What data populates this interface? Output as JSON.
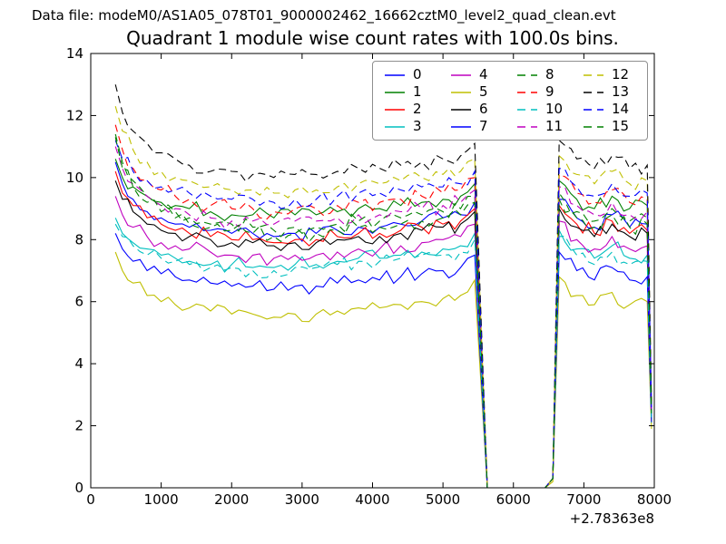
{
  "header": {
    "text": "Data file: modeM0/AS1A05_078T01_9000002462_16662cztM0_level2_quad_clean.evt"
  },
  "colors": {
    "background": "#ffffff",
    "axis": "#000000",
    "legend_border": "#8f8f8f",
    "palette_note": "matplotlib classic cycle b g r c m y k",
    "blue": "#0000ff",
    "green": "#008000",
    "red": "#ff0000",
    "cyan": "#00bfbf",
    "magenta": "#bf00bf",
    "yellow": "#bfbf00",
    "black": "#000000"
  },
  "chart_data": {
    "type": "line",
    "title": "Quadrant 1 module wise count rates with 100.0s bins.",
    "xlabel": "",
    "ylabel": "",
    "xlim": [
      0,
      8000
    ],
    "ylim": [
      0,
      14
    ],
    "x_ticks": [
      0,
      1000,
      2000,
      3000,
      4000,
      5000,
      6000,
      7000,
      8000
    ],
    "y_ticks": [
      0,
      2,
      4,
      6,
      8,
      10,
      12,
      14
    ],
    "x_offset_label": "+2.78363e8",
    "grid": false,
    "legend_position": "upper center",
    "bin_seconds": 100.0,
    "noise_amp": 0.27,
    "x": [
      350,
      450,
      600,
      800,
      1000,
      1200,
      1400,
      1700,
      2000,
      2300,
      2600,
      2900,
      3200,
      3500,
      3800,
      4100,
      4400,
      4700,
      5000,
      5250,
      5450,
      5630,
      6450,
      6560,
      6650,
      6900,
      7150,
      7400,
      7650,
      7900,
      7960
    ],
    "series": [
      {
        "name": "0",
        "color": "#0000ff",
        "dash": false,
        "values": [
          10.5,
          9.8,
          9.3,
          8.9,
          8.7,
          8.5,
          8.4,
          8.3,
          8.2,
          8.2,
          8.1,
          8.2,
          8.2,
          8.3,
          8.4,
          8.4,
          8.5,
          8.6,
          8.7,
          8.8,
          9.2,
          0,
          0,
          0.3,
          9.3,
          8.7,
          8.4,
          8.8,
          8.4,
          8.5,
          2.3
        ]
      },
      {
        "name": "1",
        "color": "#008000",
        "dash": false,
        "values": [
          10.6,
          10.0,
          9.7,
          9.4,
          9.2,
          9.1,
          9.0,
          8.9,
          8.8,
          8.8,
          8.7,
          8.8,
          8.8,
          8.9,
          9.0,
          9.0,
          9.1,
          9.2,
          9.3,
          9.4,
          9.8,
          0,
          0,
          0.3,
          9.9,
          9.3,
          9.0,
          9.4,
          9.0,
          9.1,
          2.5
        ]
      },
      {
        "name": "2",
        "color": "#ff0000",
        "dash": false,
        "values": [
          10.2,
          9.5,
          9.1,
          8.7,
          8.5,
          8.3,
          8.2,
          8.1,
          8.0,
          8.0,
          7.9,
          8.0,
          8.0,
          8.1,
          8.2,
          8.2,
          8.3,
          8.4,
          8.5,
          8.6,
          9.0,
          0,
          0,
          0.3,
          9.1,
          8.5,
          8.2,
          8.6,
          8.2,
          8.3,
          2.4
        ]
      },
      {
        "name": "3",
        "color": "#00bfbf",
        "dash": false,
        "values": [
          8.7,
          8.2,
          7.9,
          7.7,
          7.5,
          7.4,
          7.3,
          7.2,
          7.2,
          7.1,
          7.1,
          7.2,
          7.2,
          7.3,
          7.4,
          7.4,
          7.5,
          7.6,
          7.7,
          7.8,
          8.2,
          0,
          0,
          0.3,
          8.3,
          7.7,
          7.4,
          7.8,
          7.4,
          7.5,
          2.2
        ]
      },
      {
        "name": "4",
        "color": "#bf00bf",
        "dash": false,
        "values": [
          9.4,
          8.8,
          8.4,
          8.1,
          7.9,
          7.8,
          7.7,
          7.6,
          7.5,
          7.5,
          7.4,
          7.5,
          7.5,
          7.6,
          7.7,
          7.7,
          7.8,
          7.9,
          8.0,
          8.1,
          8.5,
          0,
          0,
          0.3,
          8.6,
          8.0,
          7.7,
          8.1,
          7.7,
          7.8,
          2.3
        ]
      },
      {
        "name": "5",
        "color": "#bfbf00",
        "dash": false,
        "values": [
          7.6,
          7.0,
          6.6,
          6.2,
          6.0,
          5.9,
          5.8,
          5.7,
          5.6,
          5.6,
          5.5,
          5.6,
          5.6,
          5.7,
          5.8,
          5.8,
          5.9,
          6.0,
          6.1,
          6.2,
          6.7,
          0,
          0,
          0.2,
          6.8,
          6.2,
          5.9,
          6.3,
          5.9,
          6.0,
          1.9
        ]
      },
      {
        "name": "6",
        "color": "#000000",
        "dash": false,
        "values": [
          9.9,
          9.3,
          8.9,
          8.5,
          8.3,
          8.2,
          8.1,
          8.0,
          7.9,
          7.9,
          7.8,
          7.9,
          7.9,
          8.0,
          8.1,
          8.1,
          8.2,
          8.3,
          8.4,
          8.5,
          8.9,
          0,
          0,
          0.3,
          9.0,
          8.4,
          8.1,
          8.5,
          8.1,
          8.2,
          2.4
        ]
      },
      {
        "name": "7",
        "color": "#0000ff",
        "dash": false,
        "values": [
          8.2,
          7.7,
          7.3,
          7.0,
          6.9,
          6.8,
          6.7,
          6.6,
          6.5,
          6.5,
          6.4,
          6.5,
          6.5,
          6.6,
          6.7,
          6.7,
          6.8,
          6.9,
          7.0,
          7.1,
          7.5,
          0,
          0,
          0.3,
          7.6,
          7.0,
          6.7,
          7.1,
          6.7,
          6.8,
          2.1
        ]
      },
      {
        "name": "8",
        "color": "#008000",
        "dash": true,
        "values": [
          11.4,
          10.5,
          9.9,
          9.4,
          9.1,
          8.9,
          8.7,
          8.5,
          8.5,
          8.4,
          8.3,
          8.4,
          8.4,
          8.5,
          8.6,
          8.6,
          8.7,
          8.8,
          8.9,
          9.0,
          9.4,
          0,
          0,
          0.3,
          9.5,
          8.9,
          8.6,
          9.0,
          8.6,
          8.7,
          2.5
        ]
      },
      {
        "name": "9",
        "color": "#ff0000",
        "dash": true,
        "values": [
          11.7,
          10.9,
          10.3,
          9.9,
          9.6,
          9.4,
          9.3,
          9.1,
          9.0,
          9.0,
          8.9,
          9.0,
          9.0,
          9.1,
          9.2,
          9.2,
          9.3,
          9.4,
          9.5,
          9.6,
          10.0,
          0,
          0,
          0.3,
          10.1,
          9.5,
          9.2,
          9.6,
          9.2,
          9.3,
          2.6
        ]
      },
      {
        "name": "10",
        "color": "#00bfbf",
        "dash": true,
        "values": [
          8.5,
          8.1,
          7.8,
          7.5,
          7.4,
          7.3,
          7.2,
          7.1,
          7.1,
          7.0,
          7.0,
          7.1,
          7.1,
          7.2,
          7.3,
          7.3,
          7.4,
          7.5,
          7.5,
          7.6,
          8.0,
          0,
          0,
          0.3,
          8.1,
          7.5,
          7.2,
          7.6,
          7.2,
          7.3,
          2.1
        ]
      },
      {
        "name": "11",
        "color": "#bf00bf",
        "dash": true,
        "values": [
          11.0,
          10.3,
          9.8,
          9.4,
          9.1,
          9.0,
          8.8,
          8.7,
          8.6,
          8.6,
          8.5,
          8.6,
          8.6,
          8.7,
          8.8,
          8.8,
          8.9,
          9.0,
          9.1,
          9.2,
          9.6,
          0,
          0,
          0.3,
          9.7,
          9.1,
          8.8,
          9.2,
          8.8,
          8.9,
          2.5
        ]
      },
      {
        "name": "12",
        "color": "#bfbf00",
        "dash": true,
        "values": [
          12.3,
          11.5,
          10.9,
          10.5,
          10.2,
          10.0,
          9.9,
          9.7,
          9.6,
          9.6,
          9.5,
          9.6,
          9.6,
          9.7,
          9.8,
          9.8,
          9.9,
          10.0,
          10.1,
          10.2,
          10.6,
          0,
          0,
          0.3,
          10.7,
          10.1,
          9.8,
          10.2,
          9.8,
          9.9,
          2.7
        ]
      },
      {
        "name": "13",
        "color": "#000000",
        "dash": true,
        "values": [
          13.0,
          12.1,
          11.5,
          11.1,
          10.8,
          10.6,
          10.4,
          10.2,
          10.2,
          10.1,
          10.0,
          10.1,
          10.1,
          10.2,
          10.3,
          10.3,
          10.4,
          10.5,
          10.6,
          10.7,
          11.1,
          0,
          0,
          0.3,
          11.2,
          10.6,
          10.3,
          10.7,
          10.3,
          10.4,
          2.7
        ]
      },
      {
        "name": "14",
        "color": "#0000ff",
        "dash": true,
        "values": [
          11.2,
          10.6,
          10.2,
          9.9,
          9.7,
          9.6,
          9.5,
          9.4,
          9.3,
          9.3,
          9.2,
          9.3,
          9.3,
          9.4,
          9.5,
          9.5,
          9.6,
          9.7,
          9.7,
          9.8,
          10.2,
          0,
          0,
          0.3,
          10.3,
          9.7,
          9.4,
          9.8,
          9.4,
          9.5,
          2.6
        ]
      },
      {
        "name": "15",
        "color": "#008000",
        "dash": true,
        "values": [
          11.3,
          10.3,
          9.7,
          9.2,
          8.9,
          8.7,
          8.5,
          8.4,
          8.3,
          8.2,
          8.1,
          8.2,
          8.2,
          8.3,
          8.4,
          8.4,
          8.5,
          8.6,
          8.7,
          8.8,
          9.2,
          0,
          0,
          0.3,
          9.3,
          8.7,
          8.4,
          8.8,
          8.4,
          8.5,
          2.4
        ]
      }
    ]
  }
}
